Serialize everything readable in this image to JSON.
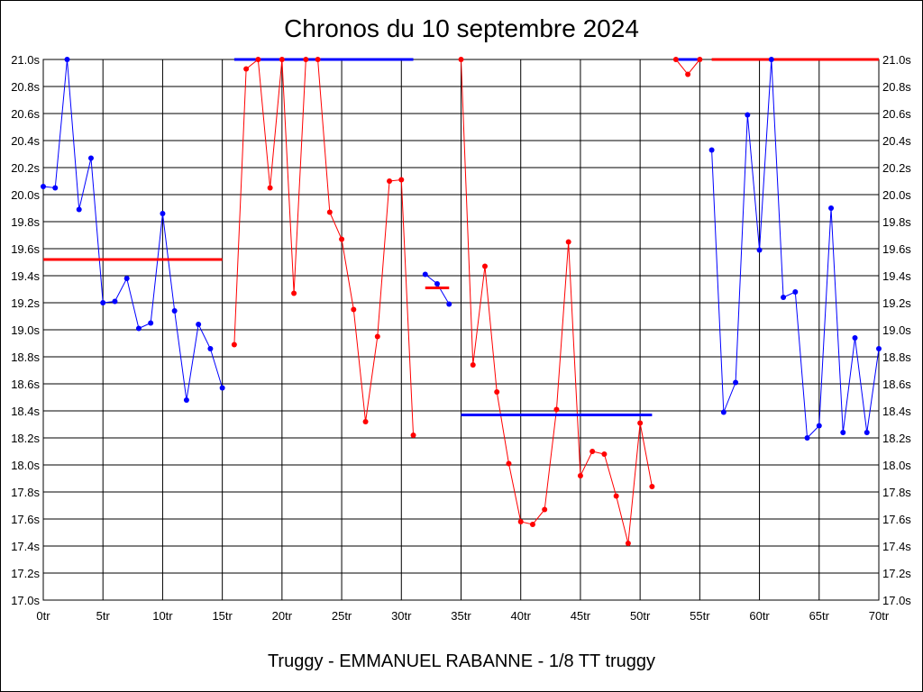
{
  "chart_data": {
    "type": "line",
    "title": "Chronos du 10 septembre 2024",
    "subtitle": "Truggy - EMMANUEL RABANNE - 1/8 TT truggy",
    "xlabel": "",
    "ylabel": "",
    "xlim": [
      0,
      70
    ],
    "ylim": [
      17.0,
      21.0
    ],
    "grid": true,
    "x_ticks": [
      "0tr",
      "5tr",
      "10tr",
      "15tr",
      "20tr",
      "25tr",
      "30tr",
      "35tr",
      "40tr",
      "45tr",
      "50tr",
      "55tr",
      "60tr",
      "65tr",
      "70tr"
    ],
    "y_ticks": [
      "17.0s",
      "17.2s",
      "17.4s",
      "17.6s",
      "17.8s",
      "18.0s",
      "18.2s",
      "18.4s",
      "18.6s",
      "18.8s",
      "19.0s",
      "19.2s",
      "19.4s",
      "19.6s",
      "19.8s",
      "20.0s",
      "20.2s",
      "20.4s",
      "20.6s",
      "20.8s",
      "21.0s"
    ],
    "series": [
      {
        "color": "#0000ff",
        "averages": 19.52,
        "averages_color": "#ff0000",
        "avg_x": [
          0,
          15
        ],
        "x": [
          0,
          1,
          2,
          3,
          4,
          5,
          6,
          7,
          8,
          9,
          10,
          11,
          12,
          13,
          14,
          15
        ],
        "values": [
          20.06,
          20.05,
          21.0,
          19.89,
          20.27,
          19.2,
          19.21,
          19.38,
          19.01,
          19.05,
          19.86,
          19.14,
          18.48,
          19.04,
          18.86,
          18.57
        ]
      },
      {
        "color": "#ff0000",
        "averages": 21.0,
        "averages_color": "#0000ff",
        "avg_x": [
          16,
          31
        ],
        "x": [
          16,
          17,
          18,
          19,
          20,
          21,
          22,
          23,
          24,
          25,
          26,
          27,
          28,
          29,
          30,
          31
        ],
        "values": [
          18.89,
          20.93,
          21.0,
          20.05,
          21.0,
          19.27,
          21.0,
          21.0,
          19.87,
          19.67,
          19.15,
          18.32,
          18.95,
          20.1,
          20.11,
          18.22
        ]
      },
      {
        "color": "#0000ff",
        "averages": 19.31,
        "averages_color": "#ff0000",
        "avg_x": [
          32,
          34
        ],
        "x": [
          32,
          33,
          34
        ],
        "values": [
          19.41,
          19.34,
          19.19
        ]
      },
      {
        "color": "#ff0000",
        "averages": 18.37,
        "averages_color": "#0000ff",
        "avg_x": [
          35,
          51
        ],
        "x": [
          35,
          36,
          37,
          38,
          39,
          40,
          41,
          42,
          43,
          44,
          45,
          46,
          47,
          48,
          49,
          50,
          51
        ],
        "values": [
          21.0,
          18.74,
          19.47,
          18.54,
          18.01,
          17.58,
          17.56,
          17.67,
          18.41,
          19.65,
          17.92,
          18.1,
          18.08,
          17.77,
          17.42,
          18.31,
          17.84
        ]
      },
      {
        "color": "#ff0000",
        "averages": 21.0,
        "averages_color": "#0000ff",
        "avg_x": [
          53,
          55
        ],
        "x": [
          53,
          54,
          55
        ],
        "values": [
          21.0,
          20.89,
          21.0
        ]
      },
      {
        "color": "#0000ff",
        "averages": 21.0,
        "averages_color": "#ff0000",
        "avg_x": [
          56,
          70
        ],
        "x": [
          56,
          57,
          58,
          59,
          60,
          61,
          62,
          63,
          64,
          65,
          66,
          67,
          68,
          69,
          70
        ],
        "values": [
          20.33,
          18.39,
          18.61,
          20.59,
          19.59,
          21.0,
          19.24,
          19.28,
          18.2,
          18.29,
          19.9,
          18.24,
          18.94,
          18.24,
          18.86
        ]
      }
    ]
  }
}
